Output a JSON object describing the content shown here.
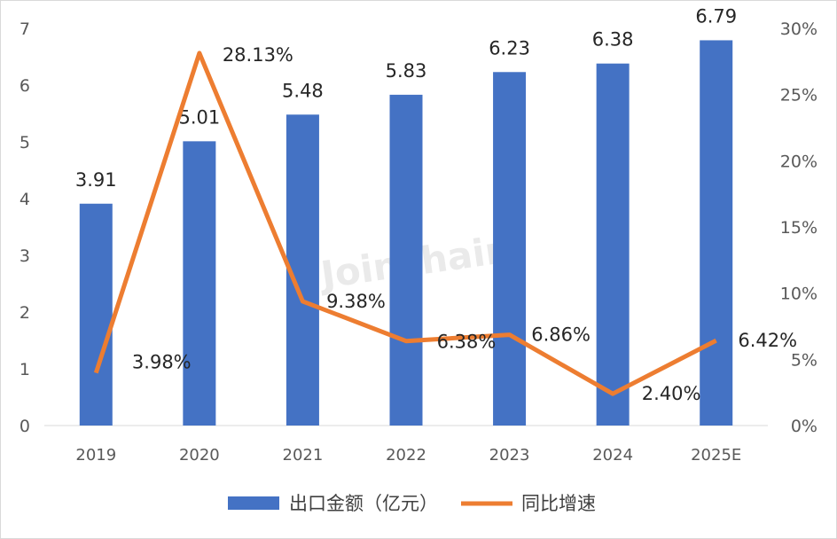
{
  "watermark": "Joinchain",
  "colors": {
    "bar": "#4472C4",
    "line": "#ED7D31"
  },
  "chart_data": {
    "type": "bar",
    "categories": [
      "2019",
      "2020",
      "2021",
      "2022",
      "2023",
      "2024",
      "2025E"
    ],
    "series": [
      {
        "name": "出口金额（亿元）",
        "type": "bar",
        "axis": "left",
        "values": [
          3.91,
          5.01,
          5.48,
          5.83,
          6.23,
          6.38,
          6.79
        ],
        "labels": [
          "3.91",
          "5.01",
          "5.48",
          "5.83",
          "6.23",
          "6.38",
          "6.79"
        ]
      },
      {
        "name": "同比增速",
        "type": "line",
        "axis": "right",
        "values": [
          3.98,
          28.13,
          9.38,
          6.38,
          6.86,
          2.4,
          6.42
        ],
        "labels": [
          "3.98%",
          "28.13%",
          "9.38%",
          "6.38%",
          "6.86%",
          "2.40%",
          "6.42%"
        ]
      }
    ],
    "ylim_left": [
      0,
      7
    ],
    "yticks_left": [
      "0",
      "1",
      "2",
      "3",
      "4",
      "5",
      "6",
      "7"
    ],
    "ylim_right": [
      0,
      30
    ],
    "yticks_right": [
      "0%",
      "5%",
      "10%",
      "15%",
      "20%",
      "25%",
      "30%"
    ],
    "grid": false,
    "legend_position": "bottom"
  }
}
